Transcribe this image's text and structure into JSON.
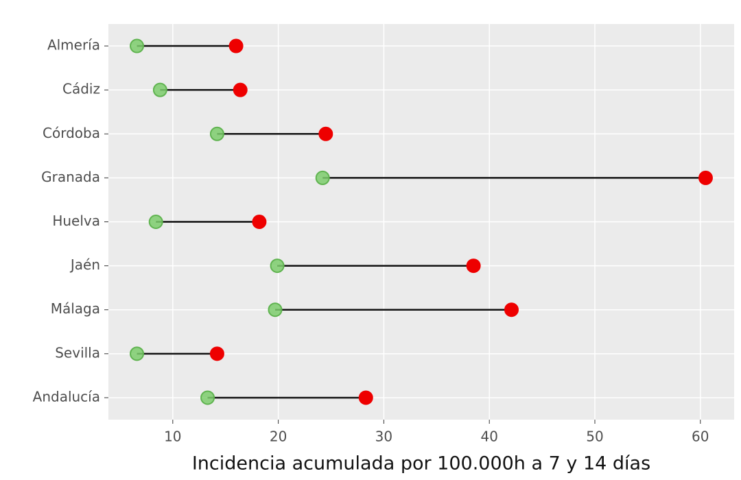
{
  "chart_data": {
    "type": "dumbbell",
    "x_label": "Incidencia acumulada por 100.000h a 7 y 14 días",
    "categories": [
      "Almería",
      "Cádiz",
      "Córdoba",
      "Granada",
      "Huelva",
      "Jaén",
      "Málaga",
      "Sevilla",
      "Andalucía"
    ],
    "series": [
      {
        "color": "#7ccd6c",
        "values": [
          6.6,
          8.8,
          14.2,
          24.2,
          8.4,
          19.9,
          19.7,
          6.6,
          13.3
        ]
      },
      {
        "color": "#ee0000",
        "values": [
          16.0,
          16.4,
          24.5,
          60.5,
          18.2,
          38.5,
          42.1,
          14.2,
          28.3
        ]
      }
    ],
    "segment_color": "#111111",
    "xlim": [
      3.9,
      63.2
    ],
    "xticks": [
      10,
      20,
      30,
      40,
      50,
      60
    ],
    "grid": true
  }
}
